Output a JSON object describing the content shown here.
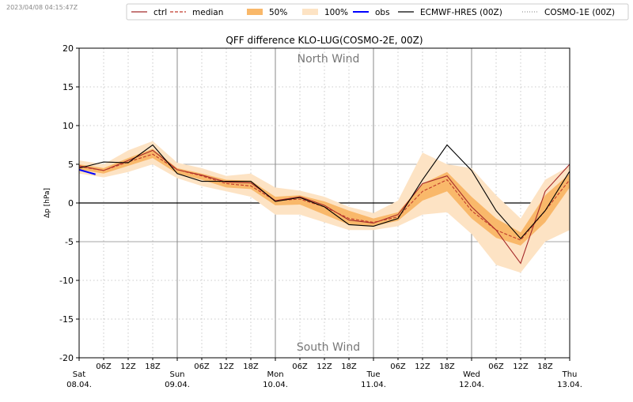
{
  "timestamp": "2023/04/08 04:15:47Z",
  "chart_data": {
    "type": "line",
    "title": "QFF difference KLO-LUG(COSMO-2E, 00Z)",
    "ylabel": "Δp [hPa]",
    "xlabel": "",
    "ylim": [
      -20,
      20
    ],
    "yticks": [
      -20,
      -15,
      -10,
      -5,
      0,
      5,
      10,
      15,
      20
    ],
    "xlim_hours": [
      0,
      120
    ],
    "grid": true,
    "legend_position": "top",
    "annotations": [
      "North Wind",
      "South Wind"
    ],
    "x_day_labels": [
      {
        "h": 0,
        "day": "Sat",
        "date": "08.04."
      },
      {
        "h": 24,
        "day": "Sun",
        "date": "09.04."
      },
      {
        "h": 48,
        "day": "Mon",
        "date": "10.04."
      },
      {
        "h": 72,
        "day": "Tue",
        "date": "11.04."
      },
      {
        "h": 96,
        "day": "Wed",
        "date": "12.04."
      },
      {
        "h": 120,
        "day": "Thu",
        "date": "13.04."
      }
    ],
    "x_hour_labels": [
      "06Z",
      "12Z",
      "18Z"
    ],
    "x_hours": [
      0,
      6,
      12,
      18,
      24,
      30,
      36,
      42,
      48,
      54,
      60,
      66,
      72,
      78,
      84,
      90,
      96,
      102,
      108,
      114,
      120
    ],
    "series": [
      {
        "name": "ctrl",
        "color": "#a52a2a",
        "style": "solid",
        "values": [
          4.8,
          4.2,
          5.5,
          6.8,
          4.3,
          3.6,
          2.7,
          2.6,
          0.3,
          0.8,
          -0.3,
          -2.2,
          -2.6,
          -1.5,
          2.5,
          3.5,
          -0.5,
          -3.5,
          -7.8,
          1.5,
          5.0
        ]
      },
      {
        "name": "median",
        "color": "#c0392b",
        "style": "dashed",
        "values": [
          4.7,
          4.2,
          5.3,
          6.3,
          4.3,
          3.5,
          2.5,
          2.2,
          0.3,
          0.5,
          -0.5,
          -2.0,
          -2.5,
          -1.8,
          1.5,
          3.0,
          -1.0,
          -3.5,
          -4.8,
          -1.0,
          3.0
        ]
      },
      {
        "name": "ECMWF-HRES (00Z)",
        "color": "#000000",
        "style": "solid",
        "values": [
          4.5,
          5.3,
          5.2,
          7.5,
          3.8,
          2.8,
          2.8,
          2.8,
          0.2,
          0.7,
          -0.5,
          -2.8,
          -3.0,
          -2.0,
          3.0,
          7.5,
          4.2,
          -1.0,
          -4.6,
          -1.0,
          4.1
        ]
      },
      {
        "name": "COSMO-1E (00Z)",
        "color": "#999999",
        "style": "dotted",
        "values": []
      },
      {
        "name": "obs",
        "color": "#0000ff",
        "style": "solid",
        "x": [
          0,
          2,
          4
        ],
        "values": [
          4.3,
          4.0,
          3.7
        ]
      }
    ],
    "bands": [
      {
        "name": "100%",
        "color": "#fde3c4",
        "upper": [
          5.5,
          5.0,
          6.8,
          8.0,
          5.2,
          4.5,
          3.5,
          3.8,
          2.0,
          1.6,
          0.8,
          -0.5,
          -1.3,
          0.3,
          6.5,
          5.0,
          4.5,
          1.0,
          -2.0,
          3.0,
          4.8
        ],
        "lower": [
          3.8,
          3.3,
          4.0,
          5.0,
          3.2,
          2.2,
          1.5,
          0.8,
          -1.5,
          -1.5,
          -2.5,
          -3.5,
          -3.5,
          -3.0,
          -1.5,
          -1.2,
          -4.0,
          -8.0,
          -9.0,
          -5.0,
          -3.5
        ]
      },
      {
        "name": "50%",
        "color": "#f9b86a",
        "upper": [
          5.0,
          4.5,
          5.8,
          7.0,
          4.5,
          3.8,
          3.0,
          2.9,
          0.8,
          1.0,
          0.2,
          -1.0,
          -2.0,
          -1.2,
          2.5,
          4.0,
          0.8,
          -2.0,
          -3.8,
          1.0,
          3.8
        ],
        "lower": [
          4.3,
          3.8,
          4.8,
          5.8,
          3.8,
          3.0,
          2.0,
          1.8,
          -0.3,
          -0.2,
          -1.5,
          -2.8,
          -3.0,
          -2.3,
          0.3,
          1.5,
          -2.0,
          -4.5,
          -5.5,
          -2.5,
          2.0
        ]
      }
    ],
    "legend": [
      "ctrl",
      "median",
      "50%",
      "100%",
      "obs",
      "ECMWF-HRES (00Z)",
      "COSMO-1E (00Z)"
    ]
  }
}
